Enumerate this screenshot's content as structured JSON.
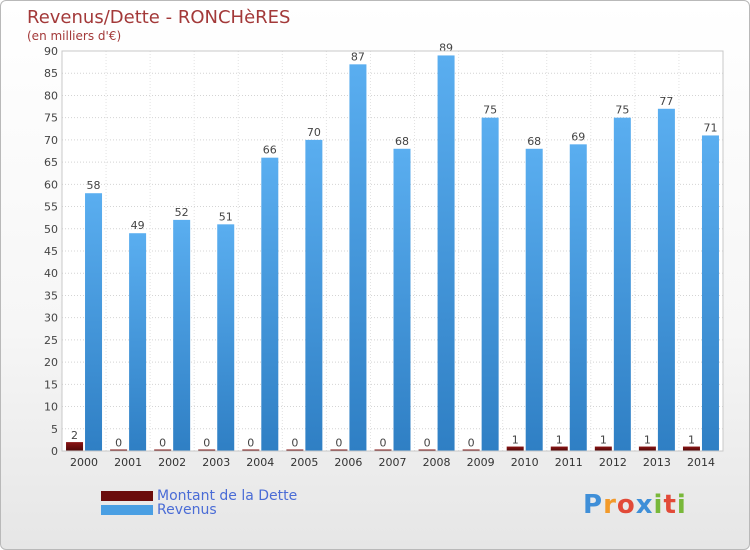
{
  "header": {
    "title": "Revenus/Dette - RONCHèRES",
    "subtitle": "(en milliers d'€)"
  },
  "legend": [
    {
      "label": "Montant de la Dette",
      "color": "#6b0c0c"
    },
    {
      "label": "Revenus",
      "color": "#4a9fe3"
    }
  ],
  "brand": {
    "letters": [
      "P",
      "r",
      "o",
      "x",
      "i",
      "t",
      "i"
    ],
    "colors": [
      "#3f8fd8",
      "#f29a2a",
      "#e24a38",
      "#3f8fd8",
      "#79b83a",
      "#e24a38",
      "#79b83a"
    ]
  },
  "chart_data": {
    "type": "bar",
    "title": "Revenus/Dette - RONCHèRES",
    "subtitle": "(en milliers d'€)",
    "xlabel": "",
    "ylabel": "",
    "categories": [
      "2000",
      "2001",
      "2002",
      "2003",
      "2004",
      "2005",
      "2006",
      "2007",
      "2008",
      "2009",
      "2010",
      "2011",
      "2012",
      "2013",
      "2014"
    ],
    "ylim": [
      0,
      90
    ],
    "ytick_step": 5,
    "grid": true,
    "series": [
      {
        "name": "Montant de la Dette",
        "color": "#6b0c0c",
        "values": [
          2,
          0,
          0,
          0,
          0,
          0,
          0,
          0,
          0,
          0,
          1,
          1,
          1,
          1,
          1
        ]
      },
      {
        "name": "Revenus",
        "color": "#4a9fe3",
        "values": [
          58,
          49,
          52,
          51,
          66,
          70,
          87,
          68,
          89,
          75,
          68,
          69,
          75,
          77,
          71
        ]
      }
    ]
  }
}
